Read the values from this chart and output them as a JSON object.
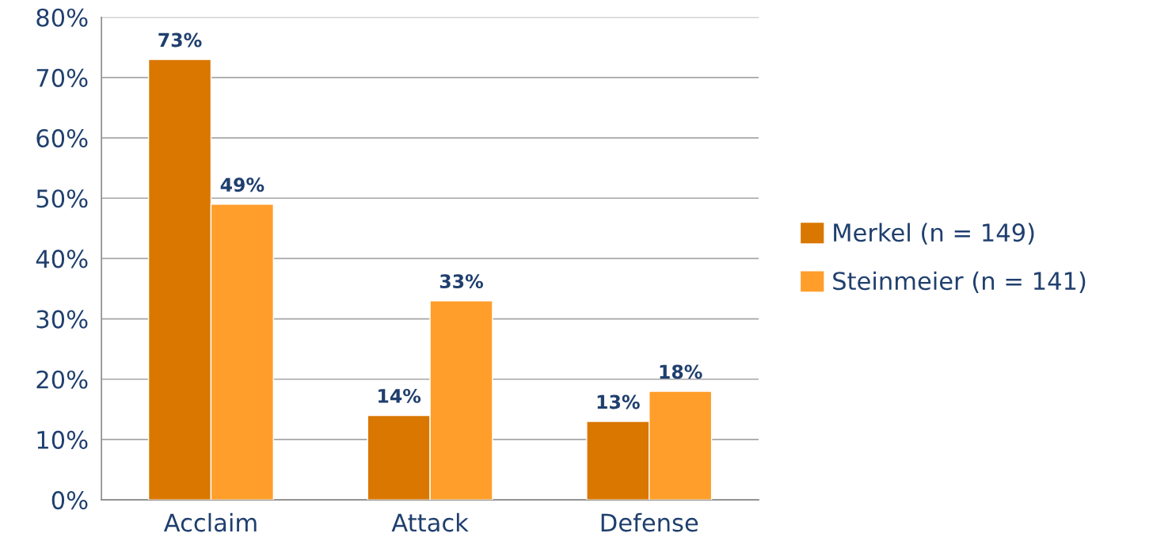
{
  "chart_data": {
    "type": "bar",
    "categories": [
      "Acclaim",
      "Attack",
      "Defense"
    ],
    "series": [
      {
        "name": "Merkel (n = 149)",
        "color": "#d97700",
        "values": [
          73,
          14,
          13
        ],
        "value_labels": [
          "73%",
          "14%",
          "13%"
        ]
      },
      {
        "name": "Steinmeier (n = 141)",
        "color": "#ff9e2a",
        "values": [
          49,
          33,
          18
        ],
        "value_labels": [
          "49%",
          "33%",
          "18%"
        ]
      }
    ],
    "ylim": [
      0,
      80
    ],
    "yticks": [
      {
        "value": 0,
        "label": "0%"
      },
      {
        "value": 10,
        "label": "10%"
      },
      {
        "value": 20,
        "label": "20%"
      },
      {
        "value": 30,
        "label": "30%"
      },
      {
        "value": 40,
        "label": "40%"
      },
      {
        "value": 50,
        "label": "50%"
      },
      {
        "value": 60,
        "label": "60%"
      },
      {
        "value": 70,
        "label": "70%"
      },
      {
        "value": 80,
        "label": "80%"
      }
    ],
    "grid": "y",
    "legend": "right"
  }
}
